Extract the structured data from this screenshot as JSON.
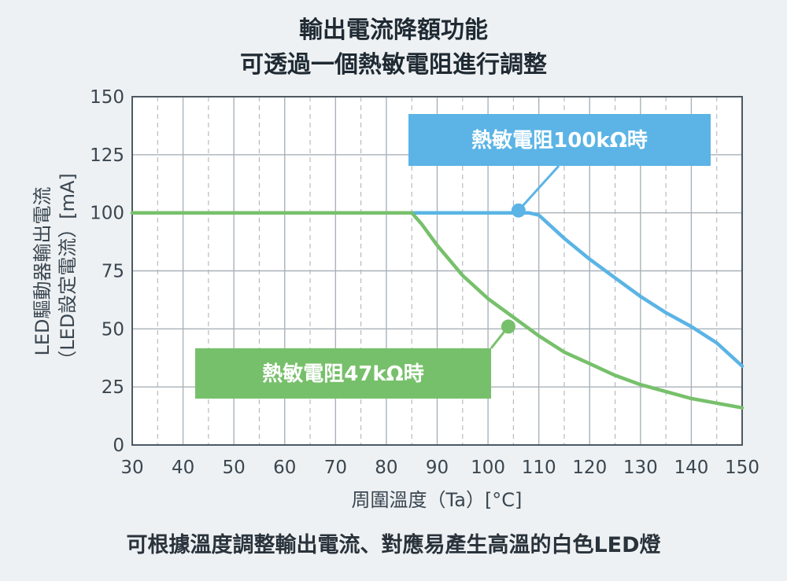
{
  "chart_data": {
    "type": "line",
    "title_lines": [
      "輸出電流降額功能",
      "可透過一個熱敏電阻進行調整"
    ],
    "xlabel": "周圍溫度（Ta）[°C]",
    "ylabel_lines": [
      "LED驅動器輸出電流",
      "（LED設定電流）[mA]"
    ],
    "xlim": [
      30,
      150
    ],
    "ylim": [
      0,
      150
    ],
    "x_ticks": [
      "30",
      "40",
      "50",
      "60",
      "70",
      "80",
      "90",
      "100",
      "110",
      "120",
      "130",
      "140",
      "150"
    ],
    "y_ticks": [
      "0",
      "25",
      "50",
      "75",
      "100",
      "125",
      "150"
    ],
    "grid": true,
    "series": [
      {
        "name": "熱敏電阻100kΩ時",
        "color": "#5bb4e5",
        "points": [
          [
            30,
            100
          ],
          [
            85,
            100
          ],
          [
            108,
            100
          ],
          [
            110,
            99
          ],
          [
            115,
            89
          ],
          [
            120,
            80
          ],
          [
            125,
            72
          ],
          [
            130,
            64
          ],
          [
            135,
            57
          ],
          [
            140,
            51
          ],
          [
            145,
            44
          ],
          [
            150,
            34
          ]
        ]
      },
      {
        "name": "熱敏電阻47kΩ時",
        "color": "#77c06b",
        "points": [
          [
            30,
            100
          ],
          [
            85,
            100
          ],
          [
            87,
            95
          ],
          [
            90,
            86
          ],
          [
            95,
            73
          ],
          [
            100,
            63
          ],
          [
            105,
            55
          ],
          [
            110,
            47
          ],
          [
            115,
            40
          ],
          [
            120,
            35
          ],
          [
            125,
            30
          ],
          [
            130,
            26
          ],
          [
            135,
            23
          ],
          [
            140,
            20
          ],
          [
            145,
            18
          ],
          [
            150,
            16
          ]
        ]
      }
    ],
    "callouts": [
      {
        "text": "熱敏電阻100kΩ時",
        "color": "#5bb4e5",
        "at": [
          106,
          101
        ]
      },
      {
        "text": "熱敏電阻47kΩ時",
        "color": "#77c06b",
        "at": [
          104,
          51
        ]
      }
    ]
  },
  "caption": "可根據溫度調整輸出電流、對應易產生高溫的白色LED燈"
}
